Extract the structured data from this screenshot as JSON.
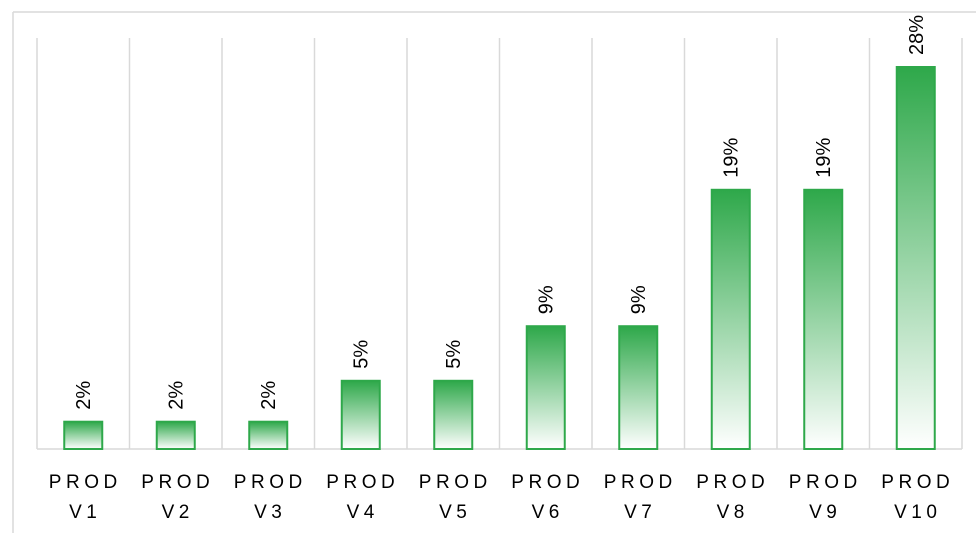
{
  "chart_data": {
    "type": "bar",
    "categories": [
      [
        "PROD",
        "V1"
      ],
      [
        "PROD",
        "V2"
      ],
      [
        "PROD",
        "V3"
      ],
      [
        "PROD",
        "V4"
      ],
      [
        "PROD",
        "V5"
      ],
      [
        "PROD",
        "V6"
      ],
      [
        "PROD",
        "V7"
      ],
      [
        "PROD",
        "V8"
      ],
      [
        "PROD",
        "V9"
      ],
      [
        "PROD",
        "V10"
      ]
    ],
    "values": [
      2,
      2,
      2,
      5,
      5,
      9,
      9,
      19,
      19,
      28
    ],
    "data_labels": [
      "2%",
      "2%",
      "2%",
      "5%",
      "5%",
      "9%",
      "9%",
      "19%",
      "19%",
      "28%"
    ],
    "title": "",
    "xlabel": "",
    "ylabel": "",
    "ylim": [
      0,
      29
    ],
    "grid": "vertical",
    "legend": "none",
    "colors": {
      "bar": "#2ea84a",
      "bar_fill_top": "#2ea84a",
      "bar_fill_bottom": "#ffffff",
      "grid": "#d9d9d9",
      "text": "#000000"
    }
  }
}
